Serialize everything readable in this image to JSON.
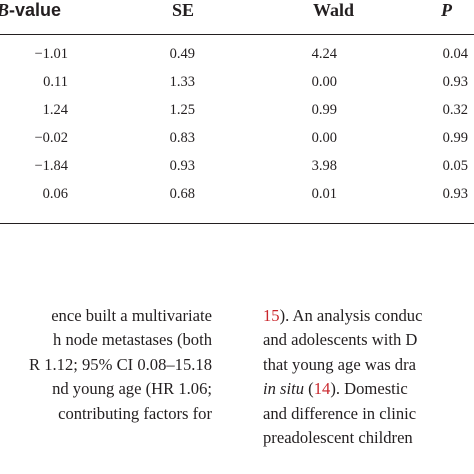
{
  "table": {
    "headers": {
      "b_value_italic": "B",
      "b_value_rest": "-value",
      "se": "SE",
      "wald": "Wald",
      "p": "P"
    },
    "rows": [
      {
        "b": "−1.01",
        "se": "0.49",
        "wald": "4.24",
        "p": "0.04"
      },
      {
        "b": "0.11",
        "se": "1.33",
        "wald": "0.00",
        "p": "0.93"
      },
      {
        "b": "1.24",
        "se": "1.25",
        "wald": "0.99",
        "p": "0.32"
      },
      {
        "b": "−0.02",
        "se": "0.83",
        "wald": "0.00",
        "p": "0.99"
      },
      {
        "b": "−1.84",
        "se": "0.93",
        "wald": "3.98",
        "p": "0.05"
      },
      {
        "b": "0.06",
        "se": "0.68",
        "wald": "0.01",
        "p": "0.93"
      }
    ]
  },
  "text": {
    "left_lines": [
      "ence built a multivariate",
      "h node metastases (both",
      "R 1.12; 95% CI 0.08–15.18",
      "nd young age (HR 1.06;",
      "contributing factors for",
      ""
    ],
    "right": {
      "line1_ref": "15",
      "line1_rest": "). An analysis conduc",
      "line2": "and adolescents with D",
      "line3": "that young age was dra",
      "line4_ital": "in situ",
      "line4_mid": " (",
      "line4_ref": "14",
      "line4_rest": "). Domestic",
      "line5": "and difference in clinic",
      "line6": "preadolescent children"
    }
  }
}
